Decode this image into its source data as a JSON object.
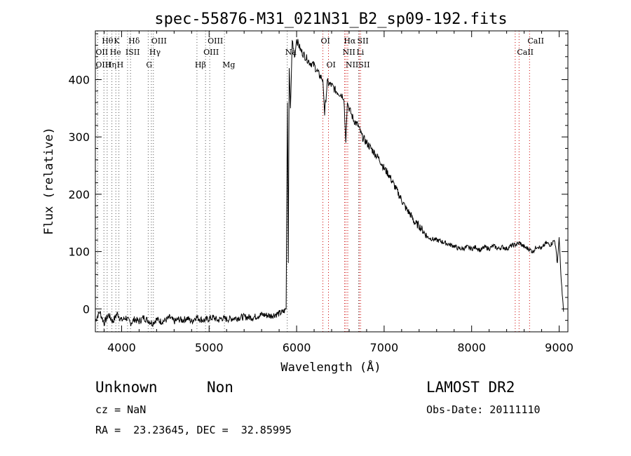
{
  "chart_data": {
    "type": "line",
    "title": "spec-55876-M31_021N31_B2_sp09-192.fits",
    "xlabel": "Wavelength (Å)",
    "ylabel": "Flux (relative)",
    "xlim": [
      3700,
      9100
    ],
    "ylim": [
      -40,
      485
    ],
    "xticks": [
      4000,
      5000,
      6000,
      7000,
      8000,
      9000
    ],
    "yticks": [
      0,
      100,
      200,
      300,
      400
    ],
    "series": [
      {
        "color": "#000000",
        "x": [
          3700,
          3750,
          3800,
          3850,
          3900,
          3950,
          4000,
          4050,
          4100,
          4150,
          4200,
          4250,
          4300,
          4350,
          4400,
          4450,
          4500,
          4550,
          4600,
          4650,
          4700,
          4750,
          4800,
          4850,
          4900,
          4950,
          5000,
          5050,
          5100,
          5150,
          5200,
          5300,
          5400,
          5500,
          5600,
          5700,
          5800,
          5850,
          5880,
          5895,
          5905,
          5915,
          5930,
          5950,
          5980,
          6000,
          6050,
          6100,
          6150,
          6200,
          6250,
          6300,
          6320,
          6350,
          6400,
          6450,
          6500,
          6540,
          6562,
          6580,
          6600,
          6650,
          6700,
          6750,
          6800,
          6850,
          6900,
          6950,
          7000,
          7050,
          7100,
          7150,
          7200,
          7250,
          7300,
          7350,
          7400,
          7450,
          7500,
          7550,
          7600,
          7650,
          7700,
          7750,
          7800,
          7850,
          7900,
          7950,
          8000,
          8050,
          8100,
          8150,
          8200,
          8250,
          8300,
          8350,
          8400,
          8450,
          8500,
          8550,
          8600,
          8650,
          8700,
          8750,
          8800,
          8850,
          8900,
          8950,
          8980,
          9000,
          9020,
          9050
        ],
        "y": [
          -20,
          -5,
          -25,
          -10,
          -22,
          -8,
          -20,
          -15,
          -25,
          -18,
          -22,
          -15,
          -20,
          -25,
          -18,
          -22,
          -20,
          -15,
          -22,
          -18,
          -20,
          -16,
          -22,
          -14,
          -18,
          -20,
          -17,
          -15,
          -20,
          -16,
          -18,
          -16,
          -14,
          -15,
          -10,
          -12,
          -8,
          -5,
          0,
          360,
          80,
          420,
          350,
          470,
          440,
          470,
          450,
          440,
          430,
          425,
          410,
          400,
          340,
          395,
          390,
          380,
          375,
          370,
          290,
          360,
          350,
          330,
          320,
          300,
          290,
          280,
          270,
          260,
          245,
          235,
          220,
          205,
          190,
          175,
          165,
          150,
          145,
          135,
          125,
          122,
          120,
          118,
          115,
          112,
          110,
          105,
          105,
          108,
          105,
          108,
          102,
          108,
          105,
          110,
          105,
          108,
          105,
          110,
          112,
          115,
          108,
          105,
          100,
          110,
          105,
          115,
          112,
          120,
          80,
          125,
          60,
          -5
        ]
      }
    ],
    "spectral_lines": [
      {
        "label": "Hθ",
        "x": 3798,
        "row": 1
      },
      {
        "label": "K",
        "x": 3934,
        "row": 1
      },
      {
        "label": "Hδ",
        "x": 4102,
        "row": 1
      },
      {
        "label": "OIII",
        "x": 4363,
        "row": 1
      },
      {
        "label": "OIII",
        "x": 5007,
        "row": 1
      },
      {
        "label": "OI",
        "x": 6300,
        "row": 1
      },
      {
        "label": "Hα",
        "x": 6563,
        "row": 1
      },
      {
        "label": "SII",
        "x": 6716,
        "row": 1
      },
      {
        "label": "CaII",
        "x": 8662,
        "row": 1
      },
      {
        "label": "OII",
        "x": 3727,
        "row": 2
      },
      {
        "label": "He",
        "x": 3889,
        "row": 2
      },
      {
        "label": "ISII",
        "x": 4068,
        "row": 2
      },
      {
        "label": "Hγ",
        "x": 4340,
        "row": 2
      },
      {
        "label": "OIII",
        "x": 4959,
        "row": 2
      },
      {
        "label": "Na",
        "x": 5893,
        "row": 2
      },
      {
        "label": "NII",
        "x": 6548,
        "row": 2
      },
      {
        "label": "Li",
        "x": 6708,
        "row": 2
      },
      {
        "label": "CaII",
        "x": 8542,
        "row": 2
      },
      {
        "label": "OIII",
        "x": 3727,
        "row": 3
      },
      {
        "label": "Hη",
        "x": 3835,
        "row": 3
      },
      {
        "label": "H",
        "x": 3969,
        "row": 3
      },
      {
        "label": "G",
        "x": 4304,
        "row": 3
      },
      {
        "label": "Hβ",
        "x": 4861,
        "row": 3
      },
      {
        "label": "Mg",
        "x": 5175,
        "row": 3
      },
      {
        "label": "OI",
        "x": 6364,
        "row": 3
      },
      {
        "label": "NII",
        "x": 6584,
        "row": 3
      },
      {
        "label": "SII",
        "x": 6731,
        "row": 3
      }
    ],
    "red_line_positions": [
      6300,
      6364,
      6548,
      6563,
      6584,
      6716,
      6731,
      8498,
      8542,
      8662
    ],
    "grid": false,
    "line_color_black": "#000000",
    "line_color_red": "#cc0000"
  },
  "footer": {
    "class_label": "Unknown",
    "subclass_label": "Non",
    "survey": "LAMOST DR2",
    "cz": "cz = NaN",
    "obs_date": "Obs-Date: 20111110",
    "coords": "RA =  23.23645, DEC =  32.85995"
  }
}
